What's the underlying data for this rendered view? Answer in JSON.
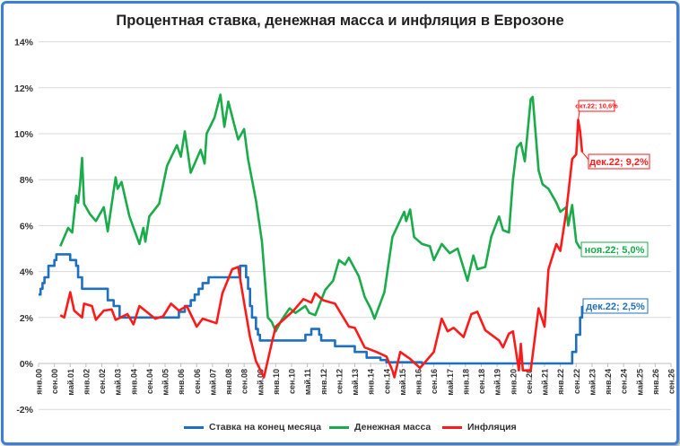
{
  "chart_data": {
    "type": "line",
    "title": "Процентная ставка, денежная масса и инфляция в Еврозоне",
    "xlabel": "",
    "ylabel": "",
    "ylim": [
      -2,
      14
    ],
    "y_ticks": [
      "-2%",
      "0%",
      "2%",
      "4%",
      "6%",
      "8%",
      "10%",
      "12%",
      "14%"
    ],
    "x_range": [
      "2000-01",
      "2026-09"
    ],
    "x_ticks": [
      "янв.00",
      "сен.00",
      "май.01",
      "янв.02",
      "сен.02",
      "май.03",
      "янв.04",
      "сен.04",
      "май.05",
      "янв.06",
      "сен.06",
      "май.07",
      "янв.08",
      "сен.08",
      "май.09",
      "янв.10",
      "сен.10",
      "май.11",
      "янв.12",
      "сен.12",
      "май.13",
      "янв.14",
      "сен.14",
      "май.15",
      "янв.16",
      "сен.16",
      "май.17",
      "янв.18",
      "сен.18",
      "май.19",
      "янв.20",
      "сен.20",
      "май.21",
      "янв.22",
      "сен.22",
      "май.23",
      "янв.24",
      "сен.24",
      "май.25",
      "янв.26",
      "сен.26"
    ],
    "grid": true,
    "legend_position": "bottom",
    "series": [
      {
        "name": "Ставка на конец месяца",
        "color": "#1f6fbf",
        "step": true,
        "points": [
          [
            "2000-01",
            3.0
          ],
          [
            "2000-02",
            3.25
          ],
          [
            "2000-03",
            3.5
          ],
          [
            "2000-04",
            3.75
          ],
          [
            "2000-06",
            4.25
          ],
          [
            "2000-09",
            4.5
          ],
          [
            "2000-10",
            4.75
          ],
          [
            "2001-05",
            4.5
          ],
          [
            "2001-08",
            4.25
          ],
          [
            "2001-09",
            3.75
          ],
          [
            "2001-11",
            3.25
          ],
          [
            "2002-12",
            2.75
          ],
          [
            "2003-03",
            2.5
          ],
          [
            "2003-06",
            2.0
          ],
          [
            "2005-12",
            2.25
          ],
          [
            "2006-03",
            2.5
          ],
          [
            "2006-06",
            2.75
          ],
          [
            "2006-08",
            3.0
          ],
          [
            "2006-10",
            3.25
          ],
          [
            "2006-12",
            3.5
          ],
          [
            "2007-03",
            3.75
          ],
          [
            "2008-07",
            4.25
          ],
          [
            "2008-10",
            3.75
          ],
          [
            "2008-11",
            3.25
          ],
          [
            "2008-12",
            2.5
          ],
          [
            "2009-01",
            2.0
          ],
          [
            "2009-03",
            1.5
          ],
          [
            "2009-04",
            1.25
          ],
          [
            "2009-05",
            1.0
          ],
          [
            "2011-04",
            1.25
          ],
          [
            "2011-07",
            1.5
          ],
          [
            "2011-11",
            1.25
          ],
          [
            "2011-12",
            1.0
          ],
          [
            "2012-07",
            0.75
          ],
          [
            "2013-05",
            0.5
          ],
          [
            "2013-11",
            0.25
          ],
          [
            "2014-06",
            0.15
          ],
          [
            "2014-09",
            0.05
          ],
          [
            "2016-03",
            0.0
          ],
          [
            "2022-07",
            0.5
          ],
          [
            "2022-09",
            1.25
          ],
          [
            "2022-11",
            2.0
          ],
          [
            "2022-12",
            2.5
          ]
        ]
      },
      {
        "name": "Денежная масса",
        "color": "#1aab4b",
        "step": false,
        "points": [
          [
            "2000-12",
            5.1
          ],
          [
            "2001-04",
            5.9
          ],
          [
            "2001-06",
            5.7
          ],
          [
            "2001-08",
            7.3
          ],
          [
            "2001-09",
            7.0
          ],
          [
            "2001-10",
            7.8
          ],
          [
            "2001-11",
            8.95
          ],
          [
            "2001-12",
            6.95
          ],
          [
            "2002-03",
            6.5
          ],
          [
            "2002-06",
            6.2
          ],
          [
            "2002-10",
            6.8
          ],
          [
            "2002-12",
            5.75
          ],
          [
            "2003-04",
            8.1
          ],
          [
            "2003-05",
            7.6
          ],
          [
            "2003-07",
            7.9
          ],
          [
            "2003-11",
            6.4
          ],
          [
            "2004-04",
            5.2
          ],
          [
            "2004-06",
            5.9
          ],
          [
            "2004-07",
            5.3
          ],
          [
            "2004-09",
            6.4
          ],
          [
            "2005-02",
            6.95
          ],
          [
            "2005-06",
            8.6
          ],
          [
            "2005-11",
            9.5
          ],
          [
            "2006-01",
            9.0
          ],
          [
            "2006-03",
            10.1
          ],
          [
            "2006-06",
            8.3
          ],
          [
            "2006-11",
            9.3
          ],
          [
            "2007-01",
            8.7
          ],
          [
            "2007-02",
            10.0
          ],
          [
            "2007-06",
            10.7
          ],
          [
            "2007-09",
            11.7
          ],
          [
            "2007-11",
            10.3
          ],
          [
            "2008-01",
            11.4
          ],
          [
            "2008-04",
            10.4
          ],
          [
            "2008-06",
            9.75
          ],
          [
            "2008-09",
            10.2
          ],
          [
            "2008-11",
            8.9
          ],
          [
            "2009-03",
            7.1
          ],
          [
            "2009-06",
            5.3
          ],
          [
            "2009-09",
            2.0
          ],
          [
            "2009-11",
            1.8
          ],
          [
            "2010-01",
            1.4
          ],
          [
            "2010-04",
            1.9
          ],
          [
            "2010-08",
            2.4
          ],
          [
            "2010-11",
            2.2
          ],
          [
            "2011-04",
            2.5
          ],
          [
            "2011-06",
            2.2
          ],
          [
            "2011-09",
            2.1
          ],
          [
            "2012-02",
            3.2
          ],
          [
            "2012-06",
            3.6
          ],
          [
            "2012-09",
            4.5
          ],
          [
            "2012-12",
            4.3
          ],
          [
            "2013-02",
            4.6
          ],
          [
            "2013-07",
            3.8
          ],
          [
            "2013-10",
            2.9
          ],
          [
            "2014-01",
            2.4
          ],
          [
            "2014-03",
            1.95
          ],
          [
            "2014-08",
            3.1
          ],
          [
            "2014-12",
            5.5
          ],
          [
            "2015-06",
            6.6
          ],
          [
            "2015-07",
            6.2
          ],
          [
            "2015-09",
            6.7
          ],
          [
            "2015-11",
            5.5
          ],
          [
            "2016-03",
            5.2
          ],
          [
            "2016-07",
            5.1
          ],
          [
            "2016-09",
            4.5
          ],
          [
            "2017-01",
            5.2
          ],
          [
            "2017-05",
            4.8
          ],
          [
            "2017-09",
            5.0
          ],
          [
            "2018-02",
            3.6
          ],
          [
            "2018-05",
            4.7
          ],
          [
            "2018-07",
            4.1
          ],
          [
            "2018-11",
            4.2
          ],
          [
            "2019-02",
            5.5
          ],
          [
            "2019-06",
            6.4
          ],
          [
            "2019-08",
            5.8
          ],
          [
            "2019-11",
            5.7
          ],
          [
            "2020-01",
            8.0
          ],
          [
            "2020-03",
            9.4
          ],
          [
            "2020-05",
            9.6
          ],
          [
            "2020-07",
            8.8
          ],
          [
            "2020-10",
            11.5
          ],
          [
            "2020-11",
            11.6
          ],
          [
            "2021-02",
            8.4
          ],
          [
            "2021-04",
            7.8
          ],
          [
            "2021-07",
            7.6
          ],
          [
            "2021-11",
            7.0
          ],
          [
            "2022-01",
            6.6
          ],
          [
            "2022-04",
            6.8
          ],
          [
            "2022-05",
            6.0
          ],
          [
            "2022-07",
            6.9
          ],
          [
            "2022-09",
            5.3
          ],
          [
            "2022-11",
            5.0
          ]
        ]
      },
      {
        "name": "Инфляция",
        "color": "#ff1a1a",
        "step": false,
        "points": [
          [
            "2000-12",
            2.1
          ],
          [
            "2001-02",
            2.0
          ],
          [
            "2001-05",
            3.1
          ],
          [
            "2001-07",
            2.3
          ],
          [
            "2001-11",
            2.0
          ],
          [
            "2001-12",
            2.6
          ],
          [
            "2002-04",
            2.5
          ],
          [
            "2002-06",
            1.9
          ],
          [
            "2002-10",
            2.3
          ],
          [
            "2003-02",
            2.35
          ],
          [
            "2003-04",
            1.9
          ],
          [
            "2003-10",
            2.15
          ],
          [
            "2004-01",
            1.7
          ],
          [
            "2004-04",
            2.5
          ],
          [
            "2004-12",
            1.95
          ],
          [
            "2005-04",
            2.05
          ],
          [
            "2005-08",
            2.6
          ],
          [
            "2005-12",
            2.3
          ],
          [
            "2006-04",
            2.5
          ],
          [
            "2006-09",
            1.6
          ],
          [
            "2006-12",
            1.95
          ],
          [
            "2007-07",
            1.75
          ],
          [
            "2007-10",
            3.05
          ],
          [
            "2008-03",
            4.1
          ],
          [
            "2008-06",
            4.2
          ],
          [
            "2008-09",
            2.65
          ],
          [
            "2008-12",
            1.15
          ],
          [
            "2009-03",
            0.1
          ],
          [
            "2009-07",
            -0.6
          ],
          [
            "2009-11",
            0.9
          ],
          [
            "2010-01",
            1.6
          ],
          [
            "2010-10",
            2.3
          ],
          [
            "2011-03",
            2.8
          ],
          [
            "2011-07",
            2.65
          ],
          [
            "2011-09",
            3.05
          ],
          [
            "2012-01",
            2.75
          ],
          [
            "2012-07",
            2.6
          ],
          [
            "2013-02",
            1.6
          ],
          [
            "2013-05",
            1.55
          ],
          [
            "2013-10",
            0.7
          ],
          [
            "2014-04",
            0.5
          ],
          [
            "2014-09",
            0.3
          ],
          [
            "2014-12",
            -0.3
          ],
          [
            "2015-01",
            -0.6
          ],
          [
            "2015-04",
            0.5
          ],
          [
            "2015-09",
            0.2
          ],
          [
            "2016-02",
            -0.2
          ],
          [
            "2016-09",
            0.5
          ],
          [
            "2017-01",
            1.95
          ],
          [
            "2017-04",
            1.4
          ],
          [
            "2017-07",
            1.55
          ],
          [
            "2017-12",
            1.15
          ],
          [
            "2018-04",
            2.15
          ],
          [
            "2018-07",
            2.25
          ],
          [
            "2018-11",
            1.45
          ],
          [
            "2019-06",
            1.0
          ],
          [
            "2019-08",
            0.7
          ],
          [
            "2019-11",
            1.3
          ],
          [
            "2020-01",
            1.4
          ],
          [
            "2020-04",
            -0.3
          ],
          [
            "2020-05",
            0.85
          ],
          [
            "2020-06",
            -0.3
          ],
          [
            "2020-10",
            -0.3
          ],
          [
            "2021-02",
            2.4
          ],
          [
            "2021-05",
            1.6
          ],
          [
            "2021-07",
            4.1
          ],
          [
            "2021-11",
            5.2
          ],
          [
            "2022-01",
            4.9
          ],
          [
            "2022-04",
            6.6
          ],
          [
            "2022-07",
            8.9
          ],
          [
            "2022-09",
            9.1
          ],
          [
            "2022-10",
            10.6
          ],
          [
            "2022-11",
            10.1
          ],
          [
            "2022-12",
            9.2
          ]
        ]
      }
    ],
    "annotations": [
      {
        "series": 2,
        "date": "2022-10",
        "value": 10.6,
        "text": "окт.22; 10,6%"
      },
      {
        "series": 2,
        "date": "2022-12",
        "value": 9.2,
        "text": "дек.22; 9,2%"
      },
      {
        "series": 1,
        "date": "2022-11",
        "value": 5.0,
        "text": "ноя.22; 5,0%"
      },
      {
        "series": 0,
        "date": "2022-12",
        "value": 2.5,
        "text": "дек.22; 2,5%"
      }
    ]
  },
  "legend": [
    "Ставка на конец месяца",
    "Денежная масса",
    "Инфляция"
  ]
}
